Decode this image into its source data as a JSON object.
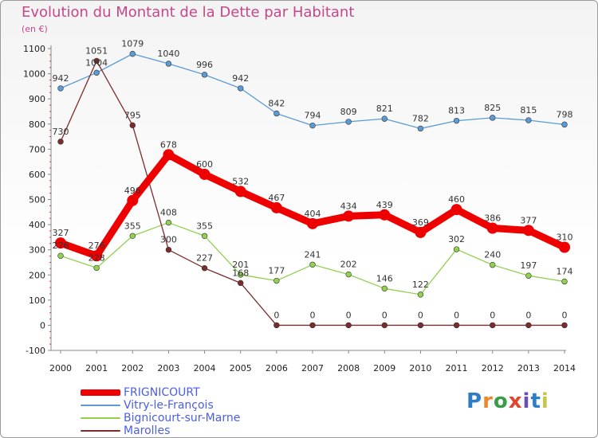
{
  "chart_title": "Evolution du Montant de la Dette par Habitant",
  "chart_unit": "(en €)",
  "logo_text": "Proxiti",
  "chart_data": {
    "type": "line",
    "title": "Evolution du Montant de la Dette par Habitant",
    "subtitle": "(en €)",
    "xlabel": "",
    "ylabel": "",
    "categories": [
      "2000",
      "2001",
      "2002",
      "2003",
      "2004",
      "2005",
      "2006",
      "2007",
      "2008",
      "2009",
      "2010",
      "2011",
      "2012",
      "2013",
      "2014"
    ],
    "yticks": [
      1100,
      1000,
      900,
      800,
      700,
      600,
      500,
      400,
      300,
      200,
      100,
      0,
      -100
    ],
    "ylim": [
      -100,
      1100
    ],
    "grid": false,
    "legend_position": "bottom-left",
    "series": [
      {
        "name": "FRIGNICOURT",
        "color": "#ee0000",
        "thick": true,
        "values": [
          327,
          276,
          496,
          678,
          600,
          532,
          467,
          404,
          434,
          439,
          369,
          460,
          386,
          377,
          310
        ],
        "labels": [
          "327",
          "276",
          "496",
          "678",
          "600",
          "532",
          "467",
          "404",
          "434",
          "439",
          "369",
          "460",
          "386",
          "377",
          "310"
        ]
      },
      {
        "name": "Vitry-le-François",
        "color": "#5b9bd5",
        "thick": false,
        "values": [
          942,
          1004,
          1079,
          1040,
          996,
          942,
          842,
          794,
          809,
          821,
          782,
          813,
          825,
          815,
          798
        ],
        "labels": [
          "942",
          "1004",
          "1079",
          "1040",
          "996",
          "942",
          "842",
          "794",
          "809",
          "821",
          "782",
          "813",
          "825",
          "815",
          "798"
        ]
      },
      {
        "name": "Bignicourt-sur-Marne",
        "color": "#92d050",
        "thick": false,
        "values": [
          276,
          228,
          355,
          408,
          355,
          201,
          177,
          241,
          202,
          146,
          122,
          302,
          240,
          197,
          174
        ],
        "labels": [
          "276",
          "228",
          "355",
          "408",
          "355",
          "201",
          "177",
          "241",
          "202",
          "146",
          "122",
          "302",
          "240",
          "197",
          "174"
        ]
      },
      {
        "name": "Marolles",
        "color": "#7b2c2c",
        "thick": false,
        "values": [
          730,
          1051,
          795,
          300,
          227,
          168,
          0,
          0,
          0,
          0,
          0,
          0,
          0,
          0,
          0
        ],
        "labels": [
          "730",
          "1051",
          "795",
          "300",
          "227",
          "168",
          "0",
          "0",
          "0",
          "0",
          "0",
          "0",
          "0",
          "0",
          "0"
        ]
      }
    ]
  },
  "legend_colors": {
    "label_text": "#4a5ee8"
  }
}
